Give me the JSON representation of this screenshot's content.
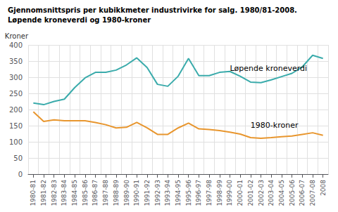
{
  "chart_data": {
    "type": "line",
    "title": "Gjennomsnittspris per kubikkmeter industrivirke for salg. 1980/81-2008.",
    "subtitle": "Løpende kroneverdi og 1980-kroner",
    "ylabel": "Kroner",
    "categories": [
      "1980-81",
      "1981-82",
      "1982-83",
      "1983-84",
      "1984-85",
      "1985-86",
      "1986-87",
      "1987-88",
      "1988-89",
      "1989-90",
      "1990-91",
      "1991-92",
      "1992-93",
      "1993-94",
      "1994-95",
      "1995-96",
      "1996-97",
      "1997-98",
      "1998-99",
      "1999-00",
      "2000-01",
      "2001-02",
      "2002-03",
      "2003-04",
      "2004-05",
      "2005-06",
      "2006-07",
      "2007-08",
      "2008"
    ],
    "series": [
      {
        "color": "#3aabab",
        "values": [
          220,
          215,
          225,
          232,
          268,
          298,
          315,
          315,
          322,
          338,
          360,
          330,
          278,
          272,
          303,
          358,
          305,
          305,
          315,
          318,
          303,
          285,
          283,
          292,
          302,
          312,
          332,
          368,
          358
        ]
      },
      {
        "color": "#e8962e",
        "values": [
          193,
          163,
          168,
          165,
          165,
          165,
          160,
          153,
          143,
          145,
          160,
          143,
          123,
          123,
          143,
          158,
          140,
          138,
          135,
          130,
          124,
          113,
          111,
          113,
          116,
          118,
          123,
          128,
          120
        ]
      }
    ],
    "annotations": [
      {
        "text": "Løpende kroneverdi",
        "x": "1999-00",
        "y": 328
      },
      {
        "text": "1980-kroner",
        "x": "2001-02",
        "y": 152
      }
    ],
    "ylim": [
      0,
      400
    ],
    "yticks": [
      0,
      50,
      100,
      150,
      200,
      250,
      300,
      350,
      400
    ],
    "grid": true
  }
}
